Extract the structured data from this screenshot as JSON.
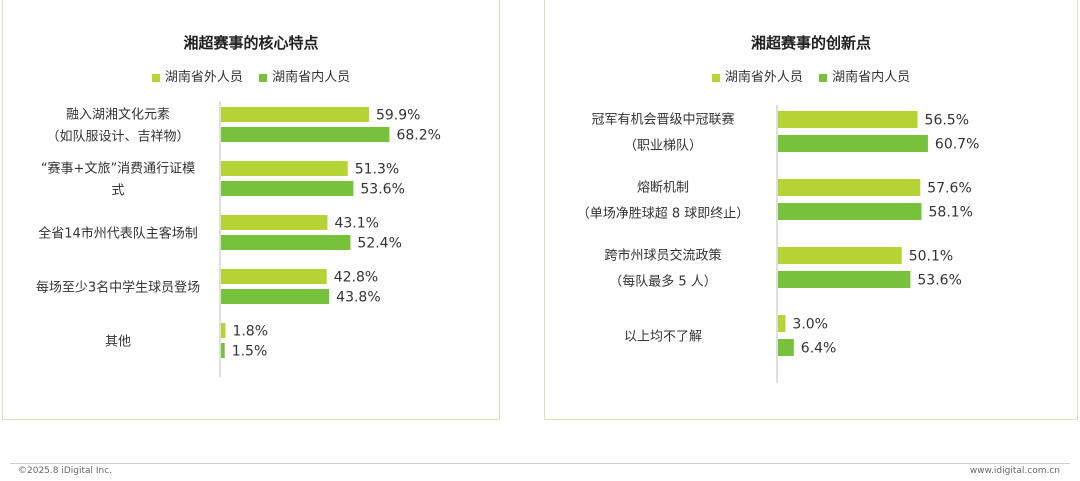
{
  "colors": {
    "outside": "#b5d334",
    "inside": "#78c13d",
    "axis": "#bdbdbd",
    "text": "#333333"
  },
  "legend": {
    "outside": "湖南省外人员",
    "inside": "湖南省内人员"
  },
  "footer": {
    "left": "©2025.8 iDigital Inc.",
    "right": "www.idigital.com.cn"
  },
  "chart_data": [
    {
      "type": "bar",
      "title": "湘超赛事的核心特点",
      "categories": [
        [
          "融入湖湘文化元素",
          "（如队服设计、吉祥物）"
        ],
        [
          "“赛事+文旅”消费通行证模",
          "式"
        ],
        [
          "全省14市州代表队主客场制"
        ],
        [
          "每场至少3名中学生球员登场"
        ],
        [
          "其他"
        ]
      ],
      "series": [
        {
          "name": "湖南省外人员",
          "values": [
            59.9,
            51.3,
            43.1,
            42.8,
            1.8
          ]
        },
        {
          "name": "湖南省内人员",
          "values": [
            68.2,
            53.6,
            52.4,
            43.8,
            1.5
          ]
        }
      ],
      "value_format": "%",
      "xlim": [
        0,
        100
      ]
    },
    {
      "type": "bar",
      "title": "湘超赛事的创新点",
      "categories": [
        [
          "冠军有机会晋级中冠联赛",
          "（职业梯队）"
        ],
        [
          "熔断机制",
          "（单场净胜球超 8 球即终止）"
        ],
        [
          "跨市州球员交流政策",
          "（每队最多 5 人）"
        ],
        [
          "以上均不了解"
        ]
      ],
      "series": [
        {
          "name": "湖南省外人员",
          "values": [
            56.5,
            57.6,
            50.1,
            3.0
          ]
        },
        {
          "name": "湖南省内人员",
          "values": [
            60.7,
            58.1,
            53.6,
            6.4
          ]
        }
      ],
      "value_format": "%",
      "xlim": [
        0,
        100
      ]
    }
  ]
}
